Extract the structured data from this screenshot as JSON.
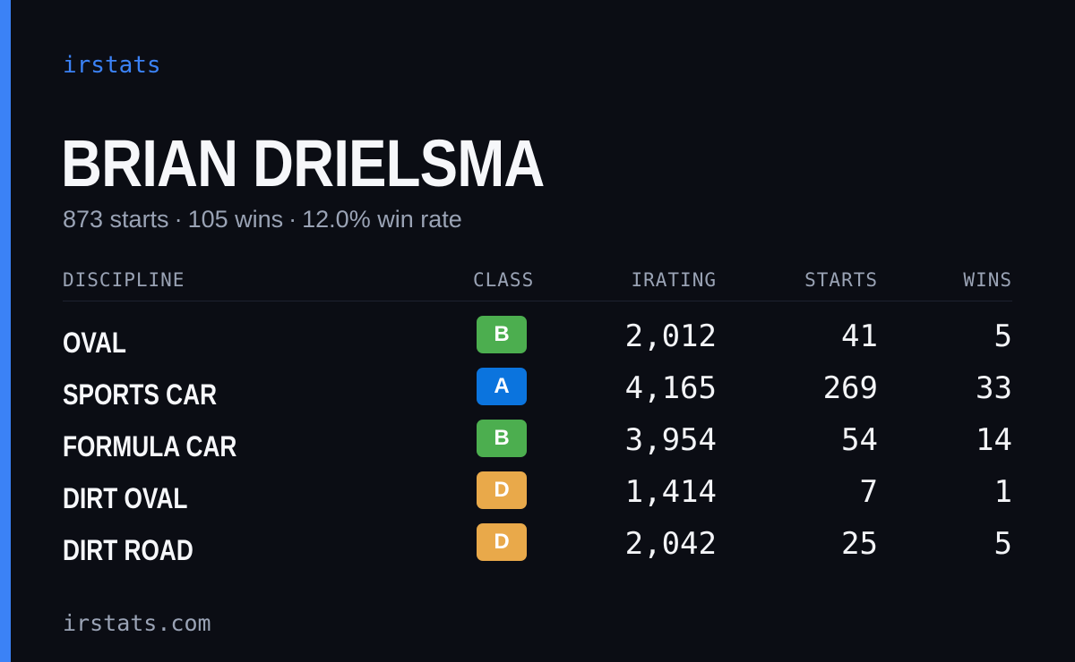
{
  "brand": "irstats",
  "player": {
    "name": "BRIAN DRIELSMA",
    "starts_text": "873 starts",
    "wins_text": "105 wins",
    "win_rate_text": "12.0% win rate",
    "separator": "·"
  },
  "table": {
    "headers": {
      "discipline": "DISCIPLINE",
      "class": "CLASS",
      "irating": "IRATING",
      "starts": "STARTS",
      "wins": "WINS"
    },
    "rows": [
      {
        "discipline": "OVAL",
        "class": "B",
        "irating": "2,012",
        "starts": "41",
        "wins": "5"
      },
      {
        "discipline": "SPORTS CAR",
        "class": "A",
        "irating": "4,165",
        "starts": "269",
        "wins": "33"
      },
      {
        "discipline": "FORMULA CAR",
        "class": "B",
        "irating": "3,954",
        "starts": "54",
        "wins": "14"
      },
      {
        "discipline": "DIRT OVAL",
        "class": "D",
        "irating": "1,414",
        "starts": "7",
        "wins": "1"
      },
      {
        "discipline": "DIRT ROAD",
        "class": "D",
        "irating": "2,042",
        "starts": "25",
        "wins": "5"
      }
    ]
  },
  "class_colors": {
    "A": "#0b74de",
    "B": "#4cae4f",
    "C": "#f1c40f",
    "D": "#e9a94a",
    "R": "#e74c3c"
  },
  "colors": {
    "accent": "#3b82f6",
    "background": "#0b0d14",
    "muted_text": "#9aa3b5"
  },
  "footer": "irstats.com"
}
